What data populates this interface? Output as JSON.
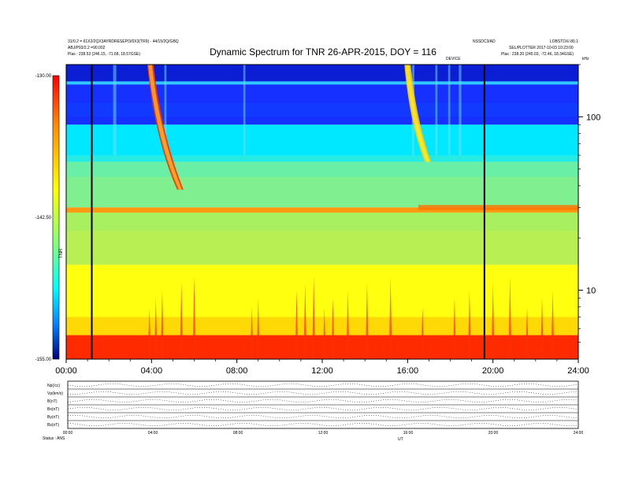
{
  "chart_data": {
    "type": "heatmap",
    "title": "Dynamic Spectrum for TNR 26-APR-2015, DOY = 116",
    "header_left": [
      "31/0.2 = 61X2/2QX3AYRDRESEP/3/0X3(TR9) - 44/15/2Q/GBQ",
      "ABJ/P93/2.2 =90.002",
      "Plas :  238.53 (246.15, -71.68, 18.57GSE)"
    ],
    "header_right": [
      "NSSDC3/AD",
      "SEL/PLOTTER 2017-10-03 10:23:00",
      "Plas :  238.20 (245.03, -72.46, 18.34GSE)"
    ],
    "header_right_top": "LOBSTDX/-80.1",
    "event_label": "DEVICE",
    "unit_label": "kHz",
    "x_ticks": [
      "00:00",
      "04:00",
      "08:00",
      "12:00",
      "16:00",
      "20:00",
      "24:00"
    ],
    "x_range_hours": [
      0,
      24
    ],
    "y_scale": "log",
    "y_range_khz": [
      4,
      200
    ],
    "y_ticks": [
      "100",
      "10"
    ],
    "y_tick_values": [
      100,
      10
    ],
    "colorbar": {
      "ticks": [
        "-130.00",
        "-142.50",
        "-155.00"
      ],
      "label": "TNR",
      "range": [
        -155,
        -130
      ],
      "colors": [
        "#000080",
        "#0000ff",
        "#00a0ff",
        "#00ffff",
        "#80ff80",
        "#ffff00",
        "#ff8000",
        "#ff0000",
        "#800000"
      ]
    },
    "markers_hours": [
      1.2,
      19.6
    ],
    "bands": [
      {
        "name": "top-dark-blue",
        "y_low_khz": 90,
        "y_high_khz": 200,
        "color": "#1530ff"
      },
      {
        "name": "cyan",
        "y_low_khz": 55,
        "y_high_khz": 90,
        "color": "#00e8ff"
      },
      {
        "name": "green-upper",
        "y_low_khz": 30,
        "y_high_khz": 55,
        "color": "#7fef90"
      },
      {
        "name": "plasma-line",
        "y_low_khz": 28,
        "y_high_khz": 30,
        "color": "#ff9a10"
      },
      {
        "name": "green-lower",
        "y_low_khz": 14,
        "y_high_khz": 28,
        "color": "#a8f060"
      },
      {
        "name": "yellow",
        "y_low_khz": 5.5,
        "y_high_khz": 14,
        "color": "#ffff10"
      },
      {
        "name": "red-base",
        "y_low_khz": 4,
        "y_high_khz": 5.5,
        "color": "#ff2a00"
      }
    ],
    "bursts": [
      {
        "name": "type-III-burst-1",
        "x_start_hours": 3.8,
        "x_end_hours": 5.2,
        "y_top_khz": 200,
        "y_bottom_khz": 38,
        "color": "#ff3000"
      },
      {
        "name": "type-III-burst-2",
        "x_start_hours": 15.85,
        "x_end_hours": 16.8,
        "y_top_khz": 200,
        "y_bottom_khz": 55,
        "color": "#ffd000"
      }
    ],
    "bottom_panels": {
      "rows": [
        "Np(/cc)",
        "Vp(km/s)",
        "B(nT)",
        "Bx(nT)",
        "By(nT)",
        "Bz(nT)"
      ],
      "ticks": [
        "00:00",
        "04:00",
        "08:00",
        "12:00",
        "16:00",
        "20:00",
        "24:00"
      ],
      "footer_left": "Status : ANS",
      "x_label": "UT"
    }
  }
}
